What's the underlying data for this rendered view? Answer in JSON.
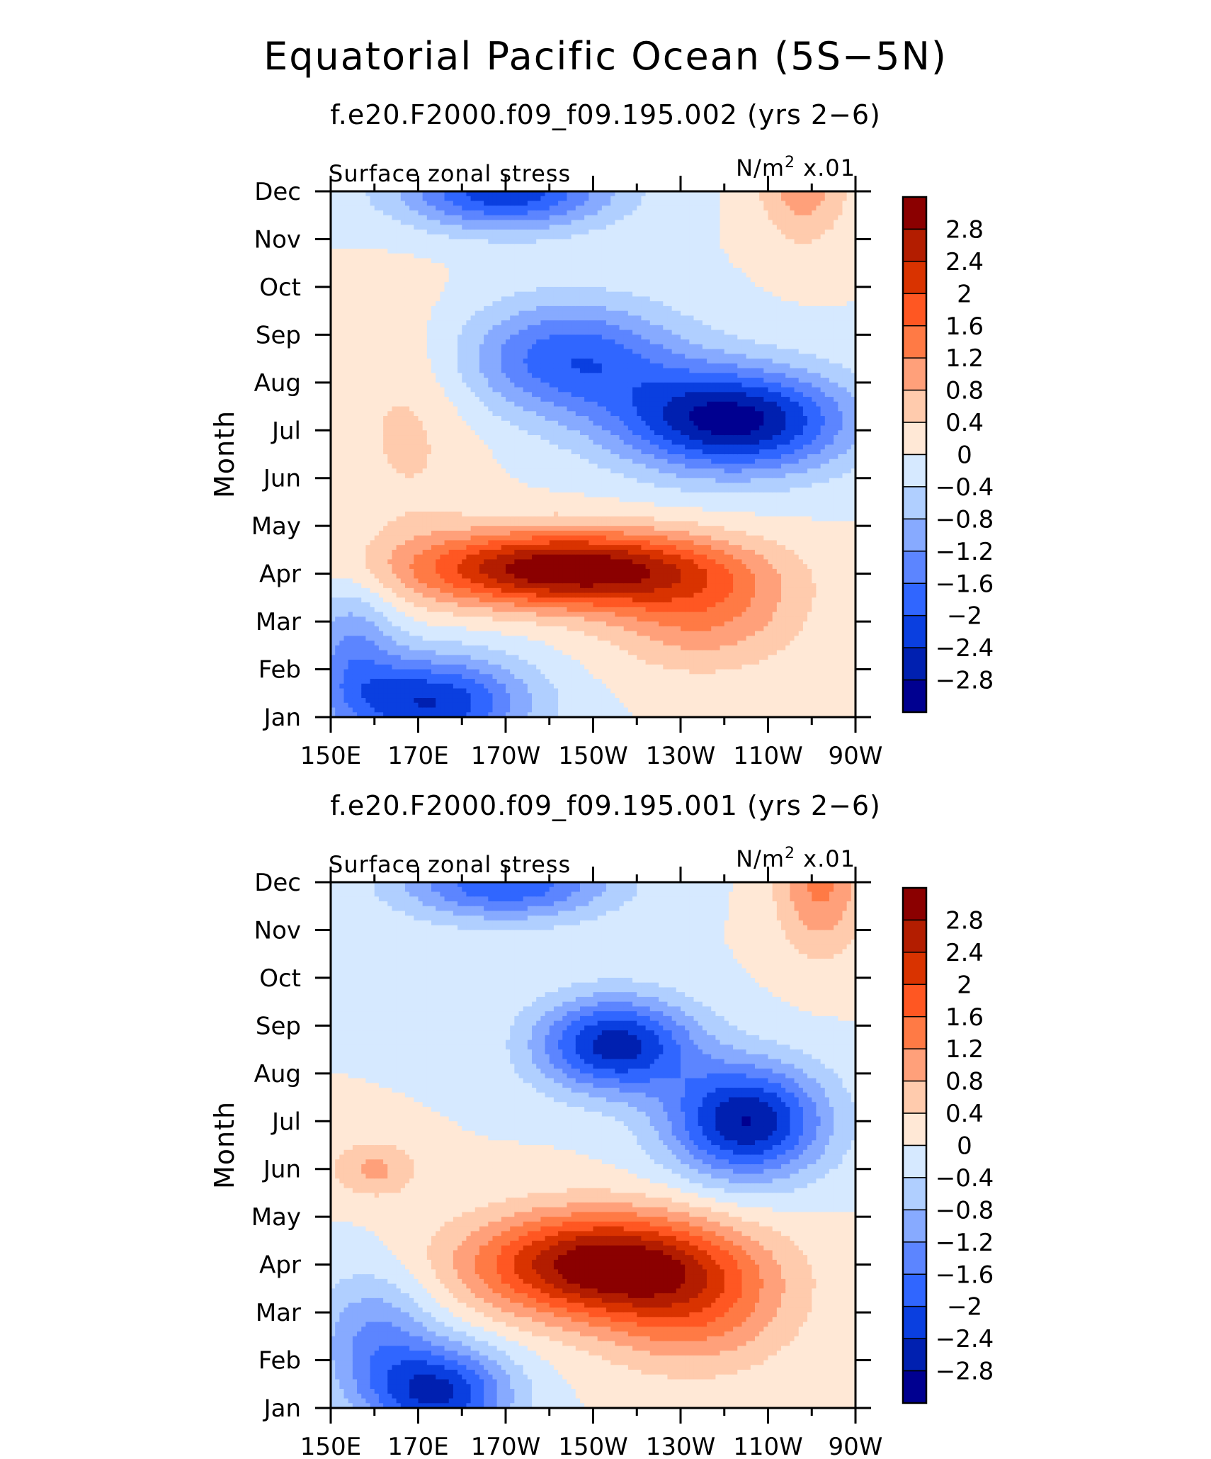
{
  "figure": {
    "main_title": "Equatorial Pacific Ocean (5S−5N)"
  },
  "chart_data": [
    {
      "type": "heatmap",
      "title": "f.e20.F2000.f09_f09.195.002 (yrs 2−6)",
      "left_label": "Surface zonal stress",
      "units_prefix": "N/m",
      "units_exp": "2",
      "units_suffix": " x.01",
      "ylabel": "Month",
      "xlabel": "",
      "x_ticks": [
        "150E",
        "170E",
        "170W",
        "150W",
        "130W",
        "110W",
        "90W"
      ],
      "x_lon_e": [
        150,
        170,
        190,
        210,
        230,
        250,
        270
      ],
      "y_ticks": [
        "Jan",
        "Feb",
        "Mar",
        "Apr",
        "May",
        "Jun",
        "Jul",
        "Aug",
        "Sep",
        "Oct",
        "Nov",
        "Dec"
      ],
      "xlim": [
        150,
        270
      ],
      "ylim": [
        1,
        12
      ],
      "levels": [
        "2.8",
        "2.4",
        "2",
        "1.6",
        "1.2",
        "0.8",
        "0.4",
        "0",
        "−0.4",
        "−0.8",
        "−1.2",
        "−1.6",
        "−2",
        "−2.4",
        "−2.8"
      ],
      "field_features": [
        {
          "kind": "max",
          "lon_e": 203,
          "month": 4.1,
          "value": 3.2,
          "sx": 34,
          "sy": 0.8,
          "rot_deg": -5
        },
        {
          "kind": "max",
          "lon_e": 235,
          "month": 3.2,
          "value": 1.2,
          "sx": 22,
          "sy": 1.2,
          "rot_deg": 0
        },
        {
          "kind": "max",
          "lon_e": 258,
          "month": 12.4,
          "value": 1.2,
          "sx": 10,
          "sy": 1.4,
          "rot_deg": 0
        },
        {
          "kind": "min",
          "lon_e": 242,
          "month": 7.2,
          "value": -3.0,
          "sx": 26,
          "sy": 1.1,
          "rot_deg": 15
        },
        {
          "kind": "min",
          "lon_e": 205,
          "month": 8.5,
          "value": -1.9,
          "sx": 25,
          "sy": 1.2,
          "rot_deg": 0
        },
        {
          "kind": "min",
          "lon_e": 190,
          "month": 12.0,
          "value": -2.3,
          "sx": 24,
          "sy": 0.8,
          "rot_deg": 0
        },
        {
          "kind": "min",
          "lon_e": 173,
          "month": 1.3,
          "value": -2.4,
          "sx": 22,
          "sy": 1.0,
          "rot_deg": 0
        },
        {
          "kind": "min",
          "lon_e": 155,
          "month": 2.5,
          "value": -1.1,
          "sx": 10,
          "sy": 1.4,
          "rot_deg": 0
        },
        {
          "kind": "max",
          "lon_e": 168,
          "month": 7.2,
          "value": 0.5,
          "sx": 15,
          "sy": 2.5,
          "rot_deg": 0
        }
      ]
    },
    {
      "type": "heatmap",
      "title": "f.e20.F2000.f09_f09.195.001 (yrs 2−6)",
      "left_label": "Surface zonal stress",
      "units_prefix": "N/m",
      "units_exp": "2",
      "units_suffix": " x.01",
      "ylabel": "Month",
      "xlabel": "",
      "x_ticks": [
        "150E",
        "170E",
        "170W",
        "150W",
        "130W",
        "110W",
        "90W"
      ],
      "x_lon_e": [
        150,
        170,
        190,
        210,
        230,
        250,
        270
      ],
      "y_ticks": [
        "Jan",
        "Feb",
        "Mar",
        "Apr",
        "May",
        "Jun",
        "Jul",
        "Aug",
        "Sep",
        "Oct",
        "Nov",
        "Dec"
      ],
      "xlim": [
        150,
        270
      ],
      "ylim": [
        1,
        12
      ],
      "levels": [
        "2.8",
        "2.4",
        "2",
        "1.6",
        "1.2",
        "0.8",
        "0.4",
        "0",
        "−0.4",
        "−0.8",
        "−1.2",
        "−1.6",
        "−2",
        "−2.4",
        "−2.8"
      ],
      "field_features": [
        {
          "kind": "max",
          "lon_e": 212,
          "month": 4.0,
          "value": 3.1,
          "sx": 30,
          "sy": 1.1,
          "rot_deg": -8
        },
        {
          "kind": "max",
          "lon_e": 233,
          "month": 3.0,
          "value": 1.2,
          "sx": 22,
          "sy": 1.3,
          "rot_deg": 0
        },
        {
          "kind": "max",
          "lon_e": 262,
          "month": 12.0,
          "value": 1.3,
          "sx": 10,
          "sy": 1.5,
          "rot_deg": 0
        },
        {
          "kind": "max",
          "lon_e": 160,
          "month": 6.0,
          "value": 0.9,
          "sx": 10,
          "sy": 0.6,
          "rot_deg": 0
        },
        {
          "kind": "min",
          "lon_e": 215,
          "month": 8.6,
          "value": -2.6,
          "sx": 18,
          "sy": 1.0,
          "rot_deg": 0
        },
        {
          "kind": "min",
          "lon_e": 245,
          "month": 7.0,
          "value": -2.8,
          "sx": 18,
          "sy": 1.2,
          "rot_deg": 10
        },
        {
          "kind": "min",
          "lon_e": 190,
          "month": 12.0,
          "value": -2.0,
          "sx": 24,
          "sy": 0.8,
          "rot_deg": 0
        },
        {
          "kind": "min",
          "lon_e": 175,
          "month": 1.3,
          "value": -2.4,
          "sx": 16,
          "sy": 1.0,
          "rot_deg": 0
        },
        {
          "kind": "min",
          "lon_e": 160,
          "month": 2.5,
          "value": -1.2,
          "sx": 14,
          "sy": 1.4,
          "rot_deg": 0
        }
      ]
    }
  ],
  "colors": {
    "colorbar": [
      "#8b0000",
      "#b31d00",
      "#d93300",
      "#ff5722",
      "#ff7a45",
      "#ffa07a",
      "#ffcbad",
      "#ffe8d6",
      "#d6e9ff",
      "#b0cfff",
      "#87aaff",
      "#5c85ff",
      "#3066ff",
      "#0a3fe0",
      "#0020b0",
      "#000090"
    ],
    "outline": "#000000"
  }
}
